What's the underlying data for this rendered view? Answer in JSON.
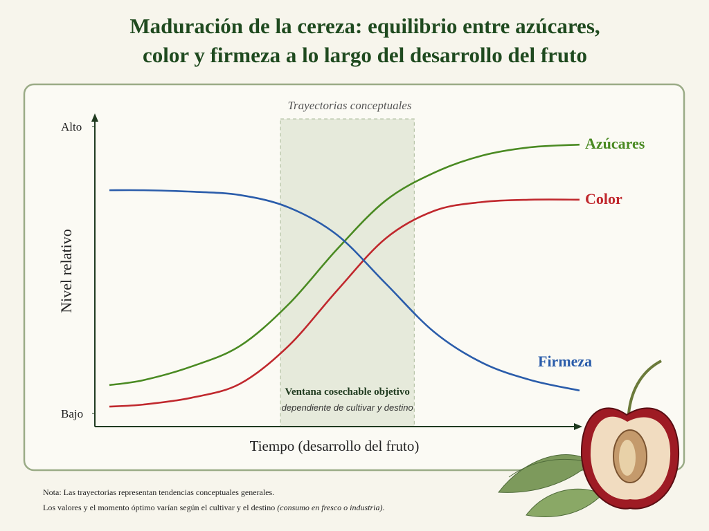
{
  "chart_data": {
    "type": "line",
    "title": [
      "Maduración de la cereza: equilibrio entre azúcares,",
      "color y firmeza a lo largo del desarrollo del fruto"
    ],
    "subtitle": "Trayectorias conceptuales",
    "y_label": "Nivel relativo",
    "x_label": "Tiempo (desarrollo del fruto)",
    "xlim": [
      0,
      10
    ],
    "ylim": [
      0,
      100
    ],
    "yticks": [
      {
        "value": 0,
        "label": "Bajo"
      },
      {
        "value": 100,
        "label": "Alto"
      }
    ],
    "x": [
      0.3,
      1,
      2,
      3,
      4,
      5,
      6,
      7,
      8,
      9,
      10
    ],
    "series": [
      {
        "name": "Azúcares",
        "color": "#4a8a22",
        "values": [
          9.9,
          11.6,
          16.4,
          23.6,
          38.1,
          57.3,
          74.2,
          83.9,
          89.9,
          92.8,
          93.7
        ]
      },
      {
        "name": "Color",
        "color": "#c0282d",
        "values": [
          2.4,
          3.1,
          5.5,
          10.4,
          23.6,
          42.9,
          61.0,
          70.6,
          73.7,
          74.5,
          74.5
        ]
      },
      {
        "name": "Firmeza",
        "color": "#2a5caa",
        "values": [
          77.8,
          77.8,
          77.3,
          76.1,
          71.8,
          62.2,
          45.3,
          28.4,
          17.6,
          11.6,
          8.0
        ]
      }
    ],
    "window": {
      "x": [
        3.83,
        6.59
      ],
      "label": "Ventana cosechable objetivo",
      "sublabel": "dependiente de cultivar y destino"
    },
    "note": {
      "prefix": "Nota:",
      "line1": "Las trayectorias representan tendencias conceptuales generales.",
      "line2": "Los valores y el momento óptimo varían según el cultivar y el destino",
      "line2_italic": "(consumo en fresco o industria)",
      "line2_end": "."
    }
  }
}
